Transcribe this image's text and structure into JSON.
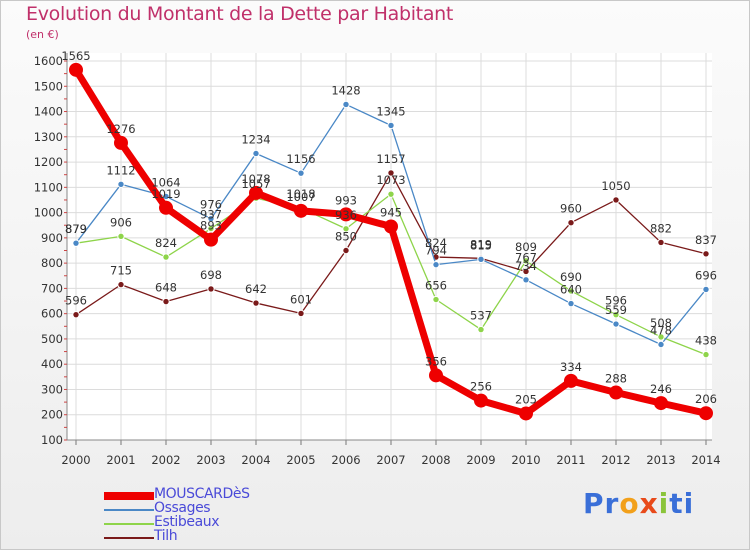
{
  "chart_data": {
    "type": "line",
    "title": "Evolution du Montant de la Dette par Habitant",
    "unit_label": "(en €)",
    "x": [
      "2000",
      "2001",
      "2002",
      "2003",
      "2004",
      "2005",
      "2006",
      "2007",
      "2008",
      "2009",
      "2010",
      "2011",
      "2012",
      "2013",
      "2014"
    ],
    "ylim": [
      100,
      1600
    ],
    "yticks": [
      100,
      200,
      300,
      400,
      500,
      600,
      700,
      800,
      900,
      1000,
      1100,
      1200,
      1300,
      1400,
      1500,
      1600
    ],
    "series": [
      {
        "name": "MOUSCARDèS",
        "color": "#ee0000",
        "values": [
          1565,
          1276,
          1019,
          893,
          1078,
          1007,
          993,
          945,
          356,
          256,
          205,
          334,
          288,
          246,
          206
        ]
      },
      {
        "name": "Ossages",
        "color": "#4a88c6",
        "values": [
          879,
          1112,
          1064,
          976,
          1234,
          1156,
          1428,
          1345,
          794,
          815,
          734,
          640,
          559,
          478,
          696
        ]
      },
      {
        "name": "Estibeaux",
        "color": "#8ed44a",
        "values": [
          879,
          906,
          824,
          937,
          1057,
          1018,
          936,
          1073,
          656,
          537,
          809,
          690,
          596,
          508,
          438
        ]
      },
      {
        "name": "Tilh",
        "color": "#7a1a1a",
        "values": [
          596,
          715,
          648,
          698,
          642,
          601,
          850,
          1157,
          824,
          819,
          767,
          960,
          1050,
          882,
          837
        ]
      }
    ]
  },
  "brand": {
    "letters": [
      "P",
      "r",
      "o",
      "x",
      "i",
      "t",
      "i"
    ],
    "colors": [
      "#3a6fd8",
      "#3a6fd8",
      "#f2a01a",
      "#e84a1a",
      "#8ac43a",
      "#3a6fd8",
      "#3a6fd8"
    ]
  }
}
